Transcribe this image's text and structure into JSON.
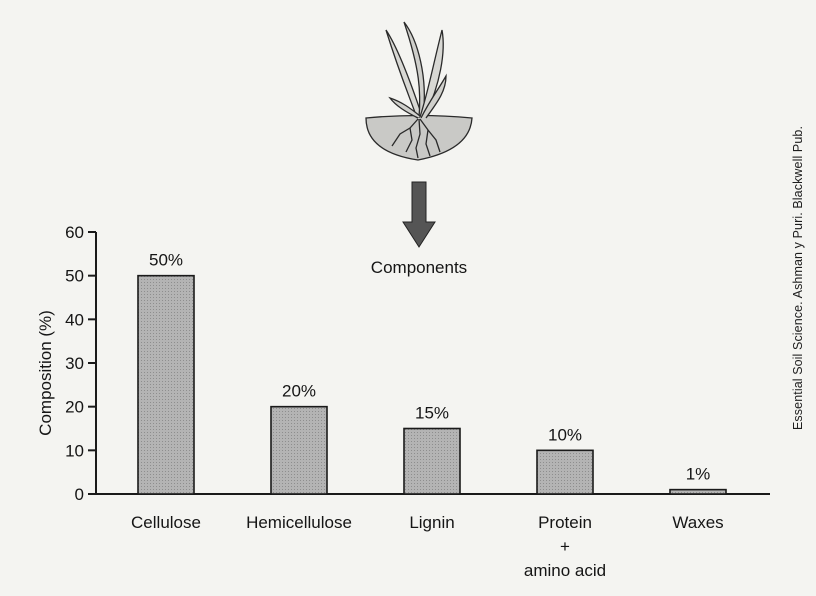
{
  "credit": "Essential Soil Science. Ashman y Puri. Blackwell Pub.",
  "colors": {
    "bar_fill": "#b4b4b4",
    "bar_stroke": "#1a1a1a",
    "axis": "#1a1a1a",
    "plant": "#2a2a2a",
    "arrow": "#555555",
    "soil": "#c9c9c6"
  },
  "icons": [
    "plant-icon",
    "down-arrow-icon"
  ],
  "chart_data": {
    "type": "bar",
    "title": "",
    "annotation": "Components",
    "xlabel": "",
    "ylabel": "Composition (%)",
    "ylim": [
      0,
      60
    ],
    "yticks": [
      "0",
      "10",
      "20",
      "30",
      "40",
      "50",
      "60"
    ],
    "categories": [
      "Cellulose",
      "Hemicellulose",
      "Lignin",
      "Protein",
      "Waxes"
    ],
    "category_lines": [
      [
        "Cellulose"
      ],
      [
        "Hemicellulose"
      ],
      [
        "Lignin"
      ],
      [
        "Protein",
        "+",
        "amino acid"
      ],
      [
        "Waxes"
      ]
    ],
    "values": [
      50,
      20,
      15,
      10,
      1
    ],
    "data_labels": [
      "50%",
      "20%",
      "15%",
      "10%",
      "1%"
    ],
    "grid": false,
    "legend": "none"
  }
}
